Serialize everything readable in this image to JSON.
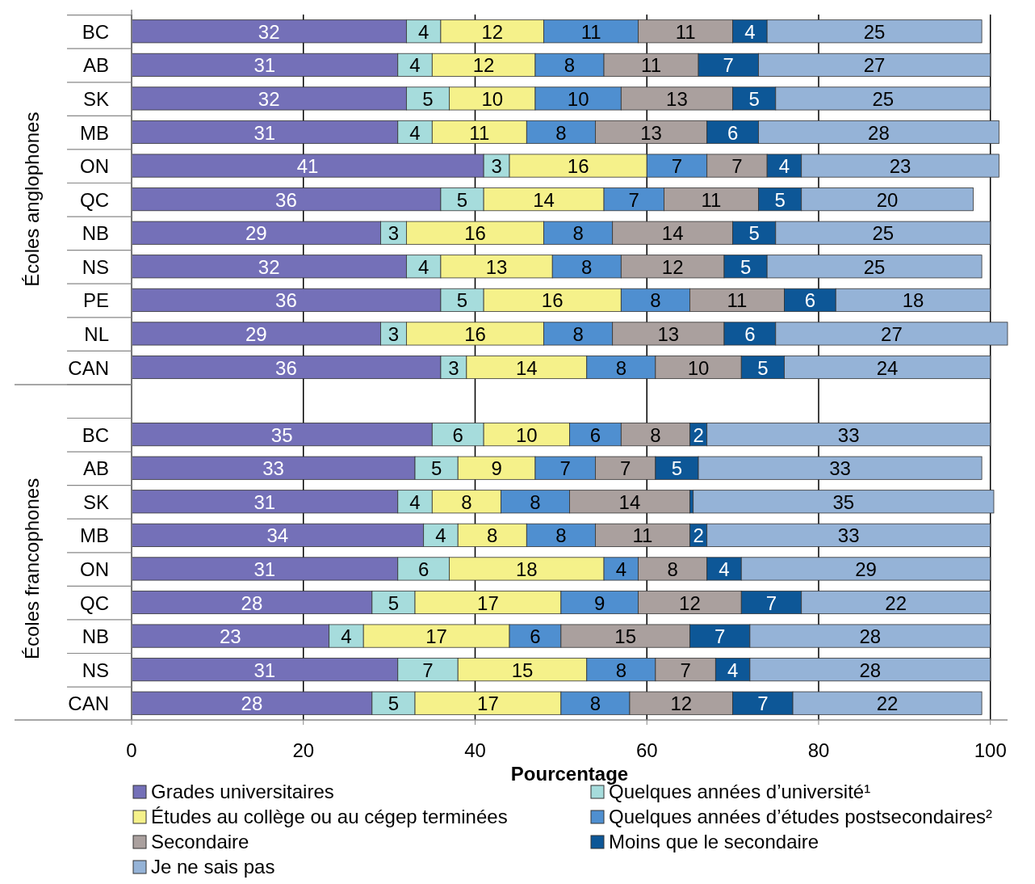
{
  "chart_data": {
    "type": "bar",
    "orientation": "horizontal",
    "stacked": true,
    "xlabel": "Pourcentage",
    "xlim": [
      0,
      102
    ],
    "xticks": [
      0,
      20,
      40,
      60,
      80,
      100
    ],
    "grid": "x",
    "legend": "bottom",
    "annotations": [
      "Écoles anglophones",
      "Écoles francophones"
    ],
    "categories": [
      "BC",
      "AB",
      "SK",
      "MB",
      "ON",
      "QC",
      "NB",
      "NS",
      "PE",
      "NL",
      "CAN",
      null,
      "BC",
      "AB",
      "SK",
      "MB",
      "ON",
      "QC",
      "NB",
      "NS",
      "CAN"
    ],
    "series": [
      {
        "name": "Grades universitaires",
        "color": "#7470b8",
        "values": [
          32,
          31,
          32,
          31,
          41,
          36,
          29,
          32,
          36,
          29,
          36,
          null,
          35,
          33,
          31,
          34,
          31,
          28,
          23,
          31,
          28
        ],
        "value_labels": [
          "32",
          "31",
          "32",
          "31",
          "41",
          "36",
          "29",
          "32",
          "36",
          "29",
          "36",
          null,
          "35",
          "33",
          "31",
          "34",
          "31",
          "28",
          "23",
          "31",
          "28"
        ]
      },
      {
        "name": "Quelques années d’université¹",
        "color": "#a6dcdc",
        "values": [
          4,
          4,
          5,
          4,
          3,
          5,
          3,
          4,
          5,
          3,
          3,
          null,
          6,
          5,
          4,
          4,
          6,
          5,
          4,
          7,
          5
        ],
        "value_labels": [
          "4",
          "4",
          "5",
          "4",
          "3",
          "5",
          "3",
          "4",
          "5",
          "3",
          "3",
          null,
          "6",
          "5",
          "4",
          "4",
          "6",
          "5",
          "4",
          "7",
          "5"
        ]
      },
      {
        "name": "Études au collège ou au cégep terminées",
        "color": "#f5f18a",
        "values": [
          12,
          12,
          10,
          11,
          16,
          14,
          16,
          13,
          16,
          16,
          14,
          null,
          10,
          9,
          8,
          8,
          18,
          17,
          17,
          15,
          17
        ],
        "value_labels": [
          "12",
          "12",
          "10",
          "11",
          "16",
          "14",
          "16",
          "13",
          "16",
          "16",
          "14",
          null,
          "10",
          "9",
          "8",
          "8",
          "18",
          "17",
          "17",
          "15",
          "17"
        ]
      },
      {
        "name": "Quelques années d’études postsecondaires²",
        "color": "#4f8fd0",
        "values": [
          11,
          8,
          10,
          8,
          7,
          7,
          8,
          8,
          8,
          8,
          8,
          null,
          6,
          7,
          8,
          8,
          4,
          9,
          6,
          8,
          8
        ],
        "value_labels": [
          "11",
          "8",
          "10",
          "8",
          "7",
          "7",
          "8",
          "8",
          "8",
          "8",
          "8",
          null,
          "6",
          "7",
          "8",
          "8",
          "4",
          "9",
          "6",
          "8",
          "8"
        ]
      },
      {
        "name": "Secondaire",
        "color": "#aaa09e",
        "values": [
          11,
          11,
          13,
          13,
          7,
          11,
          14,
          12,
          11,
          13,
          10,
          null,
          8,
          7,
          14,
          11,
          8,
          12,
          15,
          7,
          12
        ],
        "value_labels": [
          "11",
          "11",
          "13",
          "13",
          "7",
          "11",
          "14",
          "12",
          "11",
          "13",
          "10",
          null,
          "8",
          "7",
          "14",
          "11",
          "8",
          "12",
          "15",
          "7",
          "12"
        ]
      },
      {
        "name": "Moins que le secondaire",
        "color": "#0d5797",
        "values": [
          4,
          7,
          5,
          6,
          4,
          5,
          5,
          5,
          6,
          6,
          5,
          null,
          2,
          5,
          0.4,
          2,
          4,
          7,
          7,
          4,
          7
        ],
        "value_labels": [
          "4",
          "7",
          "5",
          "6",
          "4",
          "5",
          "5",
          "5",
          "6",
          "6",
          "5",
          null,
          "2",
          "5",
          null,
          "2",
          "4",
          "7",
          "7",
          "4",
          "7"
        ]
      },
      {
        "name": "Je ne sais pas",
        "color": "#95b3d7",
        "values": [
          25,
          27,
          25,
          28,
          23,
          20,
          25,
          25,
          18,
          27,
          24,
          null,
          33,
          33,
          35,
          33,
          29,
          22,
          28,
          28,
          22
        ],
        "value_labels": [
          "25",
          "27",
          "25",
          "28",
          "23",
          "20",
          "25",
          "25",
          "18",
          "27",
          "24",
          null,
          "33",
          "33",
          "35",
          "33",
          "29",
          "22",
          "28",
          "28",
          "22"
        ]
      }
    ]
  }
}
